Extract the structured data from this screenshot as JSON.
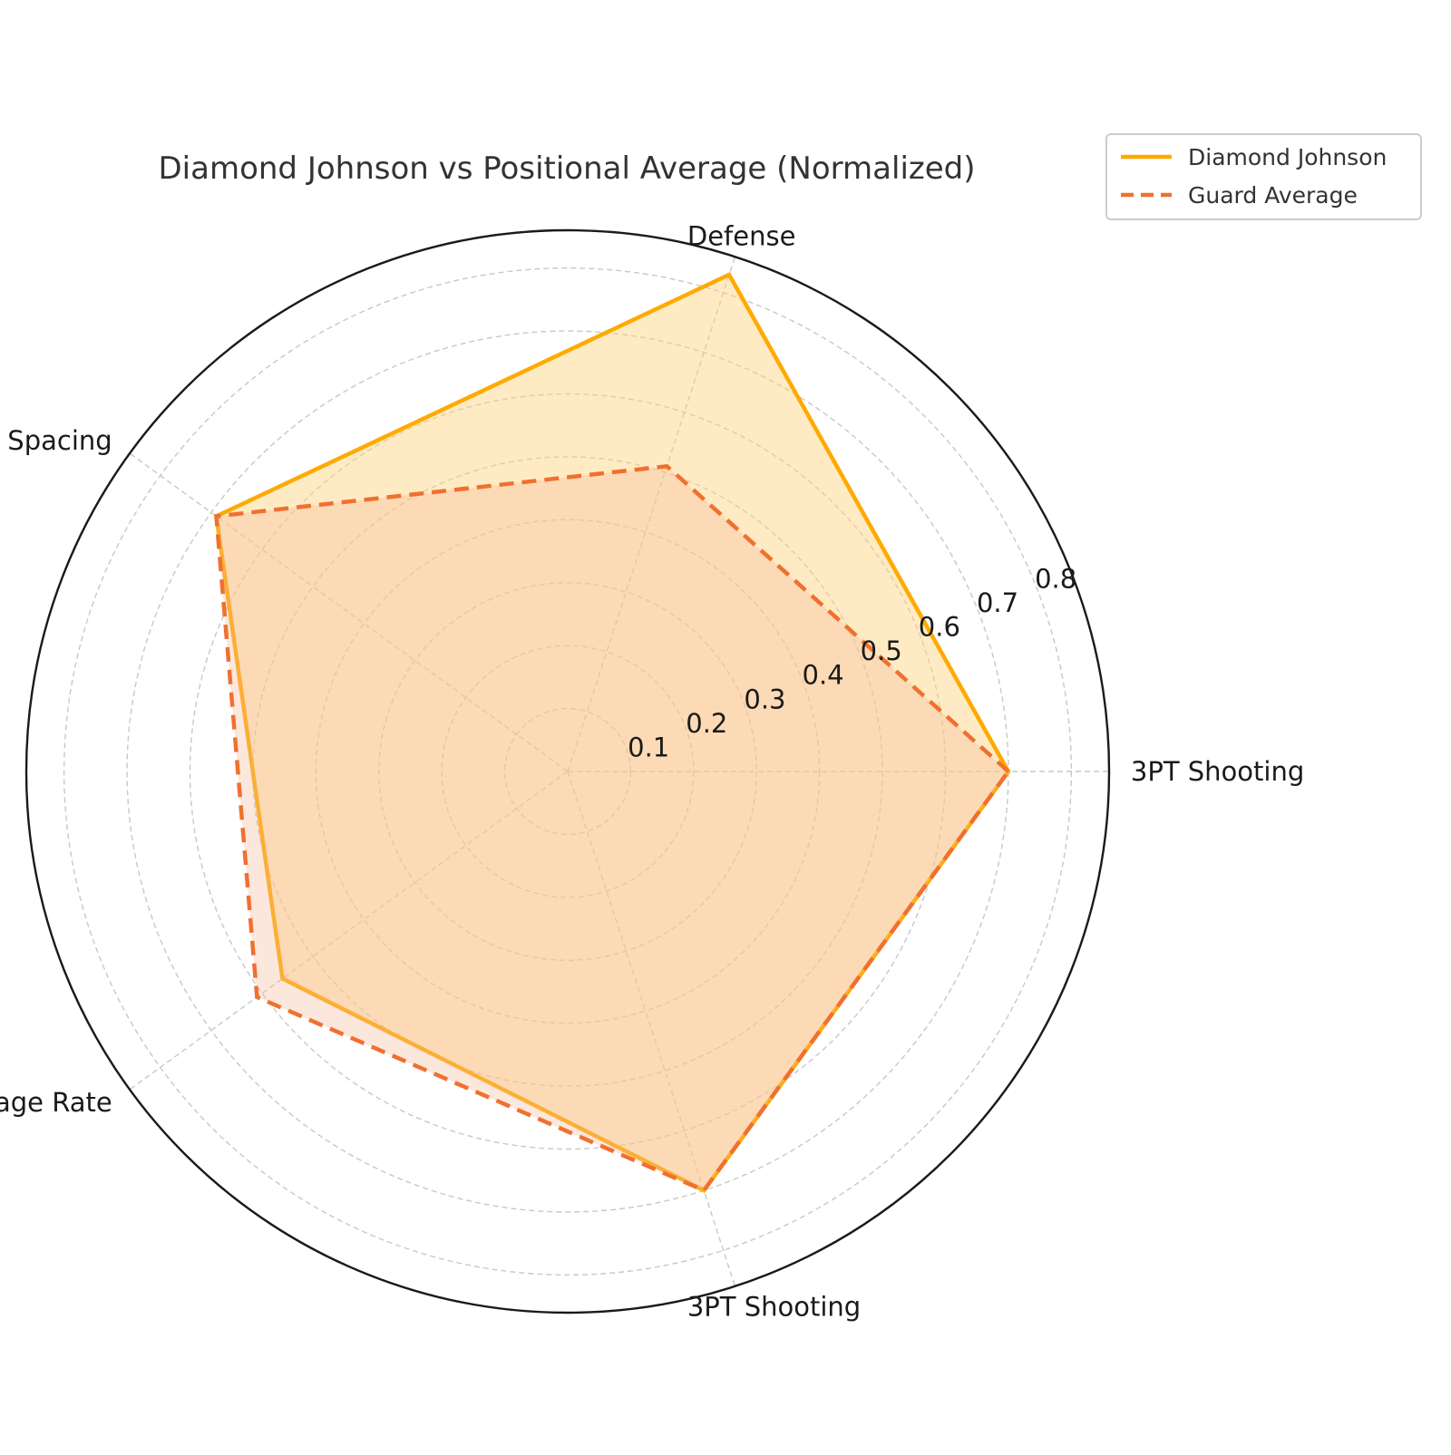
{
  "chart_data": {
    "type": "radar",
    "title": "Diamond Johnson vs Positional Average (Normalized)",
    "axes": [
      "3PT Shooting",
      "Defense",
      "Spacing",
      "Usage Rate",
      "3PT Shooting"
    ],
    "rlim": [
      0,
      0.86
    ],
    "rticks": [
      0.1,
      0.2,
      0.3,
      0.4,
      0.5,
      0.6,
      0.7,
      0.8
    ],
    "rtick_labels": [
      "0.1",
      "0.2",
      "0.3",
      "0.4",
      "0.5",
      "0.6",
      "0.7",
      "0.8"
    ],
    "grid": true,
    "legend_position": "top-right",
    "series": [
      {
        "name": "Diamond Johnson",
        "values": [
          0.7,
          0.83,
          0.69,
          0.56,
          0.7
        ],
        "color": "#FFAA00",
        "line_style": "solid",
        "fill_color": "#FFD27A"
      },
      {
        "name": "Guard Average",
        "values": [
          0.7,
          0.51,
          0.69,
          0.61,
          0.7
        ],
        "color": "#F07030",
        "line_style": "dashed",
        "fill_color": "#F7B99A"
      }
    ]
  }
}
